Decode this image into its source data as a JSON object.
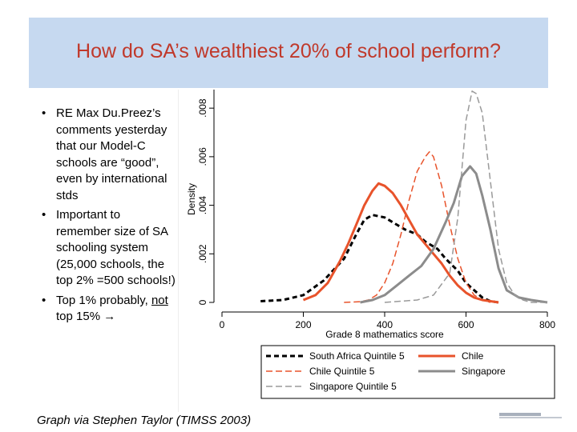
{
  "slide": {
    "title": "How do SA’s wealthiest 20% of school perform?",
    "bullets": [
      {
        "text": "RE Max Du.Preez’s comments yesterday that our Model-C schools are “good”, even by international stds"
      },
      {
        "text": "Important to remember size of SA schooling system (25,000 schools, the top 2% =500 schools!)"
      },
      {
        "text_before": "Top 1% probably, ",
        "underlined": "not",
        "text_after": " top 15% ",
        "arrow": "→"
      }
    ],
    "bullet_symbol": "•",
    "caption": "Graph via Stephen Taylor (TIMSS 2003)"
  },
  "chart_data": {
    "type": "line",
    "title": "",
    "xlabel": "Grade 8 mathematics score",
    "ylabel": "Density",
    "xlim": [
      0,
      800
    ],
    "ylim": [
      0,
      0.0085
    ],
    "xticks": [
      0,
      200,
      400,
      600,
      800
    ],
    "xtick_labels": [
      "0",
      "200",
      "400",
      "600",
      "800"
    ],
    "yticks": [
      0,
      0.002,
      0.004,
      0.006,
      0.008
    ],
    "ytick_labels": [
      "0",
      ".002",
      ".004",
      ".006",
      ".008"
    ],
    "legend_position": "bottom",
    "series": [
      {
        "name": "South Africa Quintile 5",
        "color": "#000000",
        "dash": "dash-thick",
        "width": 3,
        "x": [
          95,
          150,
          200,
          250,
          300,
          330,
          350,
          370,
          400,
          430,
          450,
          480,
          500,
          530,
          550,
          580,
          600,
          620,
          640,
          660,
          680
        ],
        "y": [
          5e-05,
          0.0001,
          0.0003,
          0.0009,
          0.0018,
          0.0028,
          0.0034,
          0.0036,
          0.0035,
          0.0032,
          0.003,
          0.0028,
          0.0025,
          0.0022,
          0.0018,
          0.0013,
          0.0008,
          0.0005,
          0.0002,
          5e-05,
          0.0
        ]
      },
      {
        "name": "Chile",
        "color": "#e8532b",
        "dash": "solid",
        "width": 3,
        "x": [
          200,
          230,
          260,
          290,
          310,
          330,
          350,
          370,
          385,
          400,
          420,
          440,
          460,
          480,
          500,
          520,
          540,
          560,
          580,
          600,
          620,
          640,
          680
        ],
        "y": [
          0.0001,
          0.0003,
          0.0008,
          0.0017,
          0.0024,
          0.0032,
          0.004,
          0.0046,
          0.0049,
          0.0048,
          0.0045,
          0.004,
          0.0034,
          0.0028,
          0.0024,
          0.002,
          0.0016,
          0.0011,
          0.0007,
          0.0004,
          0.0002,
          0.0001,
          0.0
        ]
      },
      {
        "name": "Chile Quintile 5",
        "color": "#e8532b",
        "dash": "dash",
        "width": 1.5,
        "x": [
          300,
          340,
          360,
          380,
          400,
          420,
          440,
          460,
          480,
          500,
          510,
          520,
          540,
          560,
          580,
          600,
          620,
          640,
          660
        ],
        "y": [
          0.0,
          3e-05,
          0.0001,
          0.0003,
          0.0008,
          0.0016,
          0.0028,
          0.0042,
          0.0054,
          0.006,
          0.0062,
          0.006,
          0.0048,
          0.0032,
          0.0018,
          0.0008,
          0.0003,
          0.0001,
          0.0
        ]
      },
      {
        "name": "Singapore",
        "color": "#8c8c8c",
        "dash": "solid",
        "width": 3,
        "x": [
          340,
          370,
          400,
          430,
          460,
          490,
          520,
          550,
          570,
          590,
          610,
          625,
          640,
          660,
          680,
          700,
          730,
          760,
          800
        ],
        "y": [
          0.0,
          0.0001,
          0.0003,
          0.0007,
          0.0011,
          0.0015,
          0.0022,
          0.0033,
          0.0041,
          0.0052,
          0.0056,
          0.0053,
          0.0044,
          0.003,
          0.0014,
          0.0005,
          0.0002,
          0.0001,
          0.0
        ]
      },
      {
        "name": "Singapore Quintile 5",
        "color": "#9a9a9a",
        "dash": "dash",
        "width": 1.5,
        "x": [
          400,
          440,
          480,
          520,
          560,
          580,
          600,
          615,
          625,
          640,
          660,
          680,
          700,
          720,
          740,
          760,
          780,
          800
        ],
        "y": [
          0.0,
          5e-05,
          0.0001,
          0.0003,
          0.0012,
          0.0035,
          0.0075,
          0.0087,
          0.0086,
          0.0078,
          0.005,
          0.0022,
          0.0008,
          0.0003,
          0.0001,
          0.0,
          0.0,
          0.0
        ]
      }
    ]
  }
}
